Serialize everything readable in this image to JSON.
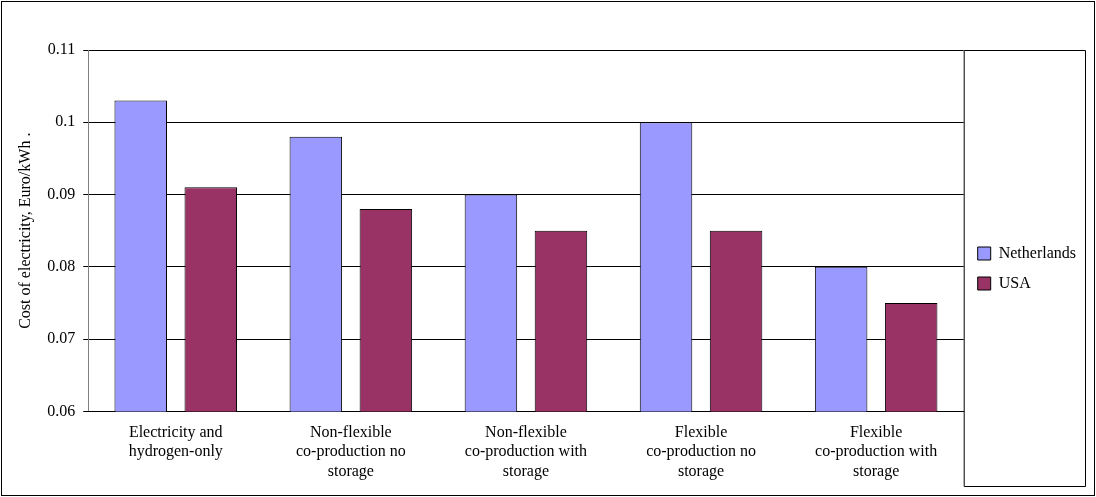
{
  "chart_data": {
    "type": "bar",
    "ylabel": "Cost of electricity, Euro/kWh .",
    "categories": [
      "Electricity and hydrogen-only",
      "Non-flexible co-production no storage",
      "Non-flexible co-production with storage",
      "Flexible co-production no storage",
      "Flexible co-production with storage"
    ],
    "series": [
      {
        "name": "Netherlands",
        "color": "#9999ff",
        "values": [
          0.103,
          0.098,
          0.09,
          0.1,
          0.08
        ]
      },
      {
        "name": "USA",
        "color": "#993366",
        "values": [
          0.091,
          0.088,
          0.085,
          0.085,
          0.075
        ]
      }
    ],
    "ylim": [
      0.06,
      0.11
    ],
    "yticks": [
      0.06,
      0.07,
      0.08,
      0.09,
      0.1,
      0.11
    ],
    "grid": "y",
    "legend": "right"
  }
}
